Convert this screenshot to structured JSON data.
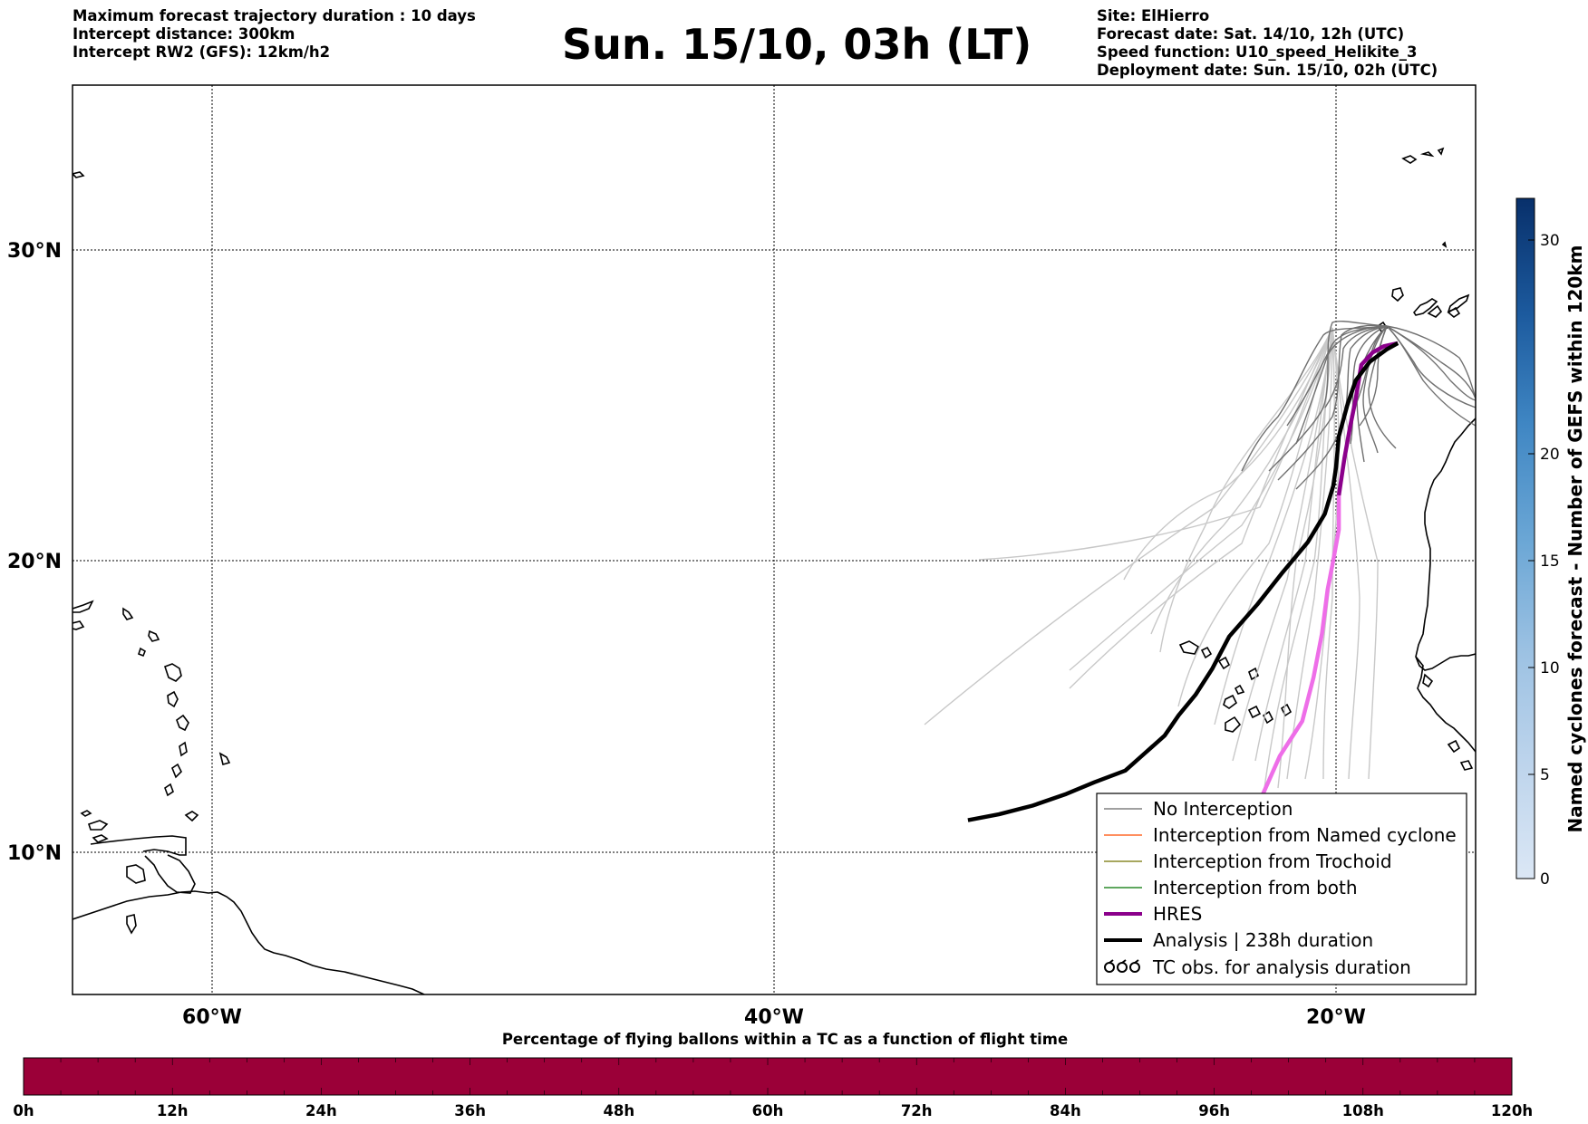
{
  "header": {
    "left": [
      "Maximum forecast trajectory duration : 10 days",
      "Intercept distance: 300km",
      "Intercept RW2 (GFS):  12km/h2"
    ],
    "title": "Sun. 15/10, 03h (LT)",
    "right": [
      "Site: ElHierro",
      "Forecast date: Sat. 14/10, 12h (UTC)",
      "Speed function: U10_speed_Helikite_3",
      "Deployment date: Sun. 15/10, 02h (UTC)"
    ]
  },
  "map": {
    "lat_labels": [
      "30°N",
      "20°N",
      "10°N"
    ],
    "lon_labels": [
      "60°W",
      "40°W",
      "20°W"
    ],
    "extent": {
      "lon_min": -65,
      "lon_max": -15,
      "lat_min": 5.3,
      "lat_max": 35.3
    }
  },
  "legend": {
    "items": [
      {
        "label": "No Interception",
        "color": "#808080",
        "style": "thin"
      },
      {
        "label": "Interception from Named cyclone",
        "color": "#ff6a2a",
        "style": "thin"
      },
      {
        "label": "Interception from Trochoid",
        "color": "#8a8a2a",
        "style": "thin"
      },
      {
        "label": "Interception from both",
        "color": "#2a8a2a",
        "style": "thin"
      },
      {
        "label": "HRES",
        "color": "#8b008b",
        "style": "thick"
      },
      {
        "label": "Analysis | 238h duration",
        "color": "#000000",
        "style": "thick"
      },
      {
        "label": "TC obs. for analysis duration",
        "color": "#000000",
        "style": "symbol"
      }
    ]
  },
  "colorbar": {
    "title": "Named cyclones forecast - Number of GEFS within 120km",
    "ticks": [
      "0",
      "5",
      "10",
      "15",
      "20",
      "30"
    ],
    "colors": [
      "#dbe7f5",
      "#bdd4ec",
      "#9dc2e3",
      "#7db0da",
      "#5c9ccf",
      "#3f86c3",
      "#2a6fb0",
      "#1c5a9e",
      "#0f4683",
      "#08306b"
    ]
  },
  "bottom_bar": {
    "title": "Percentage of flying ballons within a TC as a function of flight time",
    "ticks": [
      "0h",
      "12h",
      "24h",
      "36h",
      "48h",
      "60h",
      "72h",
      "84h",
      "96h",
      "108h",
      "120h"
    ],
    "color": "#9b0038"
  },
  "chart_data": {
    "type": "line",
    "title": "Sun. 15/10, 03h (LT)",
    "xlabel": "",
    "ylabel": "",
    "xlim": [
      -65,
      -15
    ],
    "ylim": [
      5.3,
      35.3
    ],
    "grid": true,
    "series": [
      {
        "name": "Analysis | 238h duration",
        "lon": [
          -17.8,
          -18.2,
          -18.8,
          -19.3,
          -19.6,
          -19.9,
          -20.0,
          -20.1,
          -20.4,
          -21.0,
          -21.9,
          -22.8,
          -23.8,
          -24.4,
          -25.0,
          -25.6,
          -26.1,
          -26.8,
          -27.5,
          -28.6,
          -29.6,
          -30.8,
          -32.0,
          -33.1
        ],
        "lat": [
          27.0,
          26.8,
          26.4,
          25.8,
          25.0,
          24.0,
          23.0,
          22.4,
          21.5,
          20.6,
          19.6,
          18.5,
          17.4,
          16.3,
          15.4,
          14.7,
          14.0,
          13.4,
          12.8,
          12.4,
          12.0,
          11.6,
          11.3,
          11.1
        ]
      },
      {
        "name": "HRES",
        "lon": [
          -17.8,
          -18.3,
          -18.7,
          -19.1,
          -19.3,
          -19.5,
          -19.7,
          -19.9,
          -19.9,
          -20.1,
          -20.3,
          -20.5,
          -20.8,
          -21.2,
          -22.0,
          -22.6
        ],
        "lat": [
          27.0,
          26.9,
          26.7,
          26.3,
          25.2,
          24.3,
          23.3,
          22.1,
          21.0,
          20.0,
          19.0,
          17.5,
          16.0,
          14.5,
          13.3,
          12.0
        ]
      }
    ]
  }
}
